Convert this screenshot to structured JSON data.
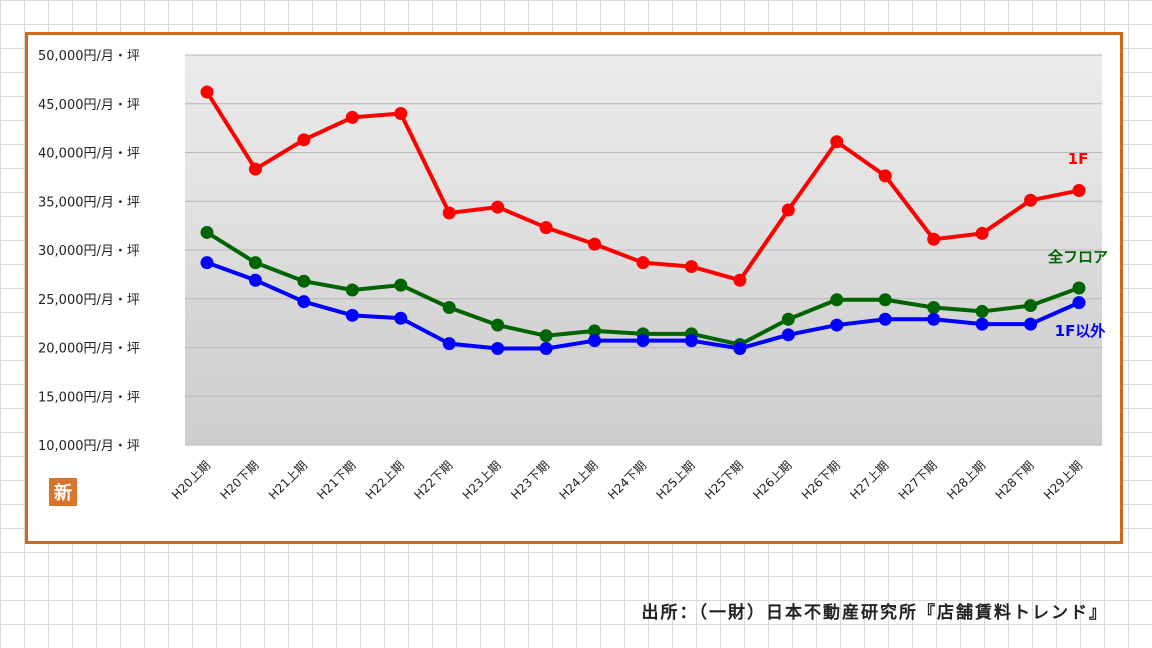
{
  "badge": {
    "text": "新"
  },
  "source": {
    "text": "出所：（一財）日本不動産研究所『店舗賃料トレンド』"
  },
  "colors": {
    "frame": "#cc6a1e",
    "red": "#ff0000",
    "green": "#006400",
    "blue": "#0000ff",
    "badge": "#d9742d"
  },
  "chart_data": {
    "type": "line",
    "title": "",
    "xlabel": "",
    "ylabel": "",
    "ylim": [
      10000,
      50000
    ],
    "ytick_values": [
      10000,
      15000,
      20000,
      25000,
      30000,
      35000,
      40000,
      45000,
      50000
    ],
    "ytick_labels": [
      "10,000円/月・坪",
      "15,000円/月・坪",
      "20,000円/月・坪",
      "25,000円/月・坪",
      "30,000円/月・坪",
      "35,000円/月・坪",
      "40,000円/月・坪",
      "45,000円/月・坪",
      "50,000円/月・坪"
    ],
    "categories": [
      "H20上期",
      "H20下期",
      "H21上期",
      "H21下期",
      "H22上期",
      "H22下期",
      "H23上期",
      "H23下期",
      "H24上期",
      "H24下期",
      "H25上期",
      "H25下期",
      "H26上期",
      "H26下期",
      "H27上期",
      "H27下期",
      "H28上期",
      "H28下期",
      "H29上期"
    ],
    "grid": true,
    "series": [
      {
        "name": "1F",
        "color": "#ff0000",
        "values": [
          46200,
          38300,
          41300,
          43600,
          44000,
          33800,
          34400,
          32300,
          30600,
          28700,
          28300,
          26900,
          34100,
          41100,
          37600,
          31100,
          31700,
          35100,
          36100
        ]
      },
      {
        "name": "全フロア",
        "color": "#006400",
        "values": [
          31800,
          28700,
          26800,
          25900,
          26400,
          24100,
          22300,
          21200,
          21700,
          21400,
          21400,
          20300,
          22900,
          24900,
          24900,
          24100,
          23700,
          24300,
          26100
        ]
      },
      {
        "name": "1F以外",
        "color": "#0000ff",
        "values": [
          28700,
          26900,
          24700,
          23300,
          23000,
          20400,
          19900,
          19900,
          20700,
          20700,
          20700,
          19900,
          21300,
          22300,
          22900,
          22900,
          22400,
          22400,
          24600
        ]
      }
    ]
  }
}
